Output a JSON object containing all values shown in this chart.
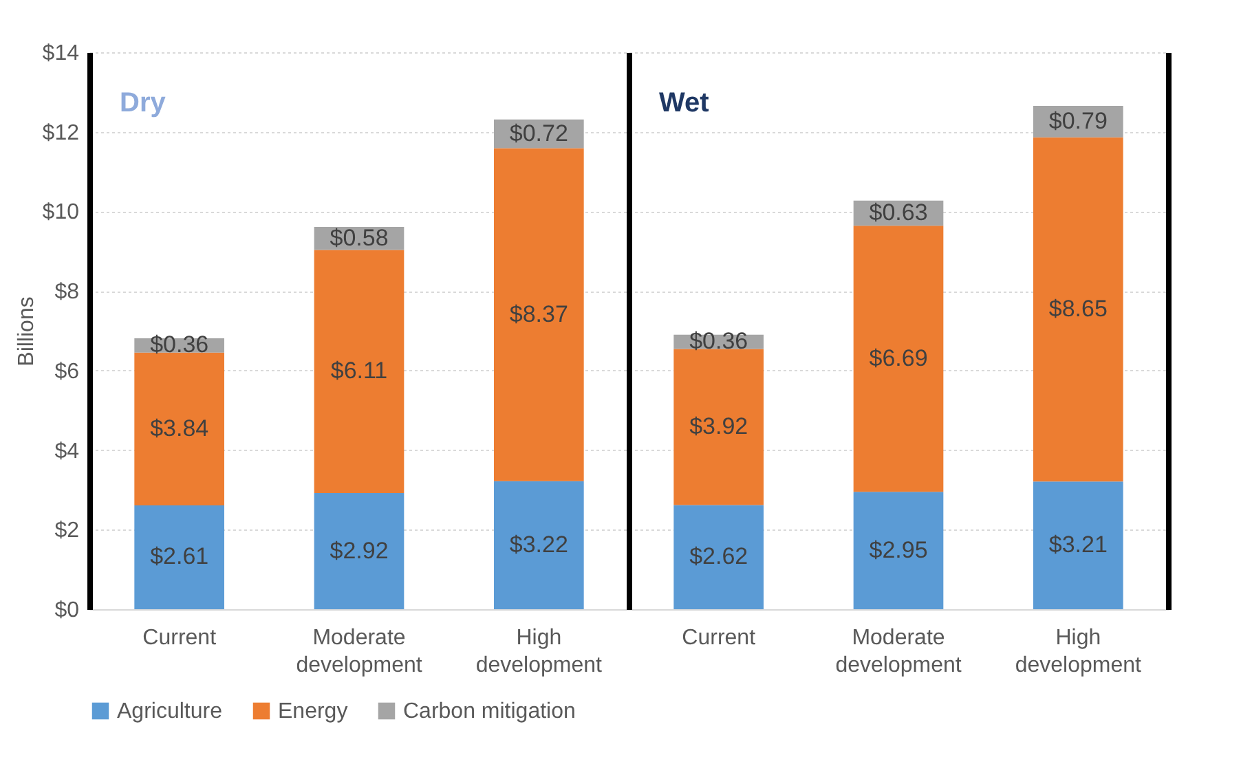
{
  "chart_data": [
    {
      "type": "bar",
      "stacked": true,
      "categories": [
        "Current",
        "Moderate development",
        "High development"
      ],
      "annotations": [
        "Dry"
      ],
      "ylabel": "Billions",
      "ylim": [
        0,
        14
      ],
      "yticks": [
        {
          "value": 0,
          "label": "$0"
        },
        {
          "value": 2,
          "label": "$2"
        },
        {
          "value": 4,
          "label": "$4"
        },
        {
          "value": 6,
          "label": "$6"
        },
        {
          "value": 8,
          "label": "$8"
        },
        {
          "value": 10,
          "label": "$10"
        },
        {
          "value": 12,
          "label": "$12"
        },
        {
          "value": 14,
          "label": "$14"
        }
      ],
      "grid": "y",
      "legend": "bottom",
      "series": [
        {
          "name": "Agriculture",
          "color": "#5b9bd5",
          "values": [
            2.61,
            2.92,
            3.22
          ],
          "value_labels": [
            "$2.61",
            "$2.92",
            "$3.22"
          ]
        },
        {
          "name": "Energy",
          "color": "#ed7d31",
          "values": [
            3.84,
            6.11,
            8.37
          ],
          "value_labels": [
            "$3.84",
            "$6.11",
            "$8.37"
          ]
        },
        {
          "name": "Carbon mitigation",
          "color": "#a5a5a5",
          "values": [
            0.36,
            0.58,
            0.72
          ],
          "value_labels": [
            "$0.36",
            "$0.58",
            "$0.72"
          ]
        }
      ]
    },
    {
      "type": "bar",
      "stacked": true,
      "categories": [
        "Current",
        "Moderate development",
        "High development"
      ],
      "annotations": [
        "Wet"
      ],
      "ylim": [
        0,
        14
      ],
      "yticks": [
        0,
        2,
        4,
        6,
        8,
        10,
        12,
        14
      ],
      "grid": "y",
      "legend": "bottom",
      "tick_labels": "x",
      "series": [
        {
          "name": "Agriculture",
          "color": "#5b9bd5",
          "values": [
            2.62,
            2.95,
            3.21
          ],
          "value_labels": [
            "$2.62",
            "$2.95",
            "$3.21"
          ]
        },
        {
          "name": "Energy",
          "color": "#ed7d31",
          "values": [
            3.92,
            6.69,
            8.65
          ],
          "value_labels": [
            "$3.92",
            "$6.69",
            "$8.65"
          ]
        },
        {
          "name": "Carbon mitigation",
          "color": "#a5a5a5",
          "values": [
            0.36,
            0.63,
            0.79
          ],
          "value_labels": [
            "$0.36",
            "$0.63",
            "$0.79"
          ]
        }
      ]
    }
  ]
}
